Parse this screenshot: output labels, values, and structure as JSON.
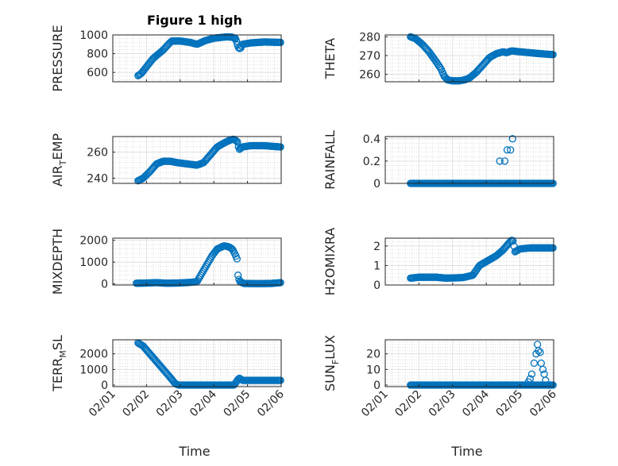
{
  "figure": {
    "title": "Figure 1 high",
    "marker_color": "#0072BD"
  },
  "chart_data": [
    {
      "type": "scatter",
      "id": "pressure",
      "ylabel": "PRESSURE",
      "ylim": [
        500,
        1000
      ],
      "yticks": [
        600,
        800,
        1000
      ],
      "xlim": [
        0,
        5
      ],
      "xticks": [
        0,
        1,
        2,
        3,
        4,
        5
      ],
      "xticklabels": [
        "02/01",
        "02/02",
        "02/03",
        "02/04",
        "02/05",
        "02/06"
      ],
      "curve": [
        [
          0.75,
          565
        ],
        [
          0.85,
          590
        ],
        [
          1.0,
          660
        ],
        [
          1.2,
          750
        ],
        [
          1.5,
          840
        ],
        [
          1.65,
          900
        ],
        [
          1.75,
          935
        ],
        [
          2.0,
          935
        ],
        [
          2.3,
          920
        ],
        [
          2.5,
          900
        ],
        [
          2.75,
          940
        ],
        [
          3.0,
          965
        ],
        [
          3.25,
          975
        ],
        [
          3.4,
          980
        ],
        [
          3.55,
          975
        ],
        [
          3.65,
          960
        ],
        [
          3.72,
          870
        ],
        [
          3.78,
          850
        ],
        [
          3.85,
          900
        ],
        [
          4.1,
          915
        ],
        [
          4.5,
          925
        ],
        [
          4.98,
          920
        ]
      ],
      "xrange": [
        0.75,
        4.98
      ],
      "count": 140
    },
    {
      "type": "scatter",
      "id": "theta",
      "ylabel": "THETA",
      "ylim": [
        256,
        281
      ],
      "yticks": [
        260,
        270,
        280
      ],
      "xlim": [
        0,
        5
      ],
      "xticks": [
        0,
        1,
        2,
        3,
        4,
        5
      ],
      "xticklabels": [
        "02/01",
        "02/02",
        "02/03",
        "02/04",
        "02/05",
        "02/06"
      ],
      "curve": [
        [
          0.75,
          280
        ],
        [
          0.9,
          279
        ],
        [
          1.1,
          276
        ],
        [
          1.3,
          272
        ],
        [
          1.5,
          267
        ],
        [
          1.65,
          263
        ],
        [
          1.75,
          259
        ],
        [
          1.85,
          257
        ],
        [
          2.0,
          256.5
        ],
        [
          2.2,
          256.5
        ],
        [
          2.35,
          257
        ],
        [
          2.5,
          258
        ],
        [
          2.7,
          261
        ],
        [
          2.9,
          265
        ],
        [
          3.1,
          269
        ],
        [
          3.3,
          271
        ],
        [
          3.5,
          272
        ],
        [
          3.6,
          271.5
        ],
        [
          3.75,
          272.5
        ],
        [
          4.0,
          272
        ],
        [
          4.3,
          271.5
        ],
        [
          4.6,
          271
        ],
        [
          4.98,
          270.5
        ]
      ],
      "xrange": [
        0.75,
        4.98
      ],
      "count": 140
    },
    {
      "type": "scatter",
      "id": "air_temp",
      "ylabel": "AIR_TEMP",
      "ylim": [
        236,
        272
      ],
      "yticks": [
        240,
        260
      ],
      "xlim": [
        0,
        5
      ],
      "xticks": [
        0,
        1,
        2,
        3,
        4,
        5
      ],
      "xticklabels": [
        "02/01",
        "02/02",
        "02/03",
        "02/04",
        "02/05",
        "02/06"
      ],
      "curve": [
        [
          0.75,
          238
        ],
        [
          0.9,
          240
        ],
        [
          1.1,
          245
        ],
        [
          1.3,
          251
        ],
        [
          1.5,
          253
        ],
        [
          1.7,
          253
        ],
        [
          1.9,
          252
        ],
        [
          2.2,
          251
        ],
        [
          2.5,
          250
        ],
        [
          2.7,
          252
        ],
        [
          2.9,
          258
        ],
        [
          3.1,
          264
        ],
        [
          3.3,
          267
        ],
        [
          3.5,
          269.5
        ],
        [
          3.6,
          270
        ],
        [
          3.7,
          268
        ],
        [
          3.75,
          262
        ],
        [
          3.85,
          264
        ],
        [
          4.1,
          265
        ],
        [
          4.5,
          265
        ],
        [
          4.98,
          264
        ]
      ],
      "xrange": [
        0.75,
        4.98
      ],
      "count": 140
    },
    {
      "type": "scatter",
      "id": "rainfall",
      "ylabel": "RAINFALL",
      "ylim": [
        0,
        0.42
      ],
      "yticks": [
        0,
        0.2,
        0.4
      ],
      "xlim": [
        0,
        5
      ],
      "xticks": [
        0,
        1,
        2,
        3,
        4,
        5
      ],
      "xticklabels": [
        "02/01",
        "02/02",
        "02/03",
        "02/04",
        "02/05",
        "02/06"
      ],
      "curve": [
        [
          0.75,
          0
        ],
        [
          4.98,
          0
        ]
      ],
      "xrange": [
        0.75,
        4.98
      ],
      "count": 140,
      "extra_points": [
        [
          3.4,
          0.2
        ],
        [
          3.55,
          0.2
        ],
        [
          3.62,
          0.3
        ],
        [
          3.72,
          0.3
        ],
        [
          3.78,
          0.4
        ]
      ]
    },
    {
      "type": "scatter",
      "id": "mixdepth",
      "ylabel": "MIXDEPTH",
      "ylim": [
        -50,
        2100
      ],
      "yticks": [
        0,
        1000,
        2000
      ],
      "xlim": [
        0,
        5
      ],
      "xticks": [
        0,
        1,
        2,
        3,
        4,
        5
      ],
      "xticklabels": [
        "02/01",
        "02/02",
        "02/03",
        "02/04",
        "02/05",
        "02/06"
      ],
      "curve": [
        [
          0.7,
          30
        ],
        [
          1.0,
          40
        ],
        [
          1.3,
          60
        ],
        [
          1.6,
          30
        ],
        [
          1.9,
          40
        ],
        [
          2.2,
          60
        ],
        [
          2.5,
          100
        ],
        [
          2.65,
          500
        ],
        [
          2.8,
          900
        ],
        [
          2.95,
          1300
        ],
        [
          3.1,
          1600
        ],
        [
          3.3,
          1750
        ],
        [
          3.45,
          1700
        ],
        [
          3.55,
          1600
        ],
        [
          3.65,
          1300
        ],
        [
          3.7,
          1100
        ],
        [
          3.72,
          300
        ],
        [
          3.78,
          100
        ],
        [
          3.9,
          20
        ],
        [
          4.3,
          10
        ],
        [
          4.7,
          20
        ],
        [
          4.98,
          60
        ]
      ],
      "xrange": [
        0.7,
        4.98
      ],
      "count": 140
    },
    {
      "type": "scatter",
      "id": "h2omixra",
      "ylabel": "H2OMIXRA",
      "ylim": [
        0,
        2.4
      ],
      "yticks": [
        0,
        1,
        2
      ],
      "xlim": [
        0,
        5
      ],
      "xticks": [
        0,
        1,
        2,
        3,
        4,
        5
      ],
      "xticklabels": [
        "02/01",
        "02/02",
        "02/03",
        "02/04",
        "02/05",
        "02/06"
      ],
      "curve": [
        [
          0.75,
          0.35
        ],
        [
          1.0,
          0.4
        ],
        [
          1.5,
          0.4
        ],
        [
          1.8,
          0.35
        ],
        [
          2.3,
          0.38
        ],
        [
          2.6,
          0.5
        ],
        [
          2.8,
          1.0
        ],
        [
          3.0,
          1.2
        ],
        [
          3.3,
          1.5
        ],
        [
          3.5,
          1.8
        ],
        [
          3.65,
          2.1
        ],
        [
          3.75,
          2.3
        ],
        [
          3.8,
          2.25
        ],
        [
          3.85,
          1.7
        ],
        [
          4.0,
          1.85
        ],
        [
          4.3,
          1.9
        ],
        [
          4.98,
          1.9
        ]
      ],
      "xrange": [
        0.75,
        4.98
      ],
      "count": 140
    },
    {
      "type": "scatter",
      "id": "terr_msl",
      "ylabel": "TERR_MSL",
      "ylim": [
        -100,
        2900
      ],
      "yticks": [
        0,
        1000,
        2000
      ],
      "xlim": [
        0,
        5
      ],
      "xticks": [
        0,
        1,
        2,
        3,
        4,
        5
      ],
      "xticklabels": [
        "02/01",
        "02/02",
        "02/03",
        "02/04",
        "02/05",
        "02/06"
      ],
      "curve": [
        [
          0.75,
          2700
        ],
        [
          0.9,
          2500
        ],
        [
          1.1,
          2000
        ],
        [
          1.3,
          1500
        ],
        [
          1.5,
          1000
        ],
        [
          1.7,
          500
        ],
        [
          1.85,
          100
        ],
        [
          1.95,
          0
        ],
        [
          3.6,
          0
        ],
        [
          3.7,
          300
        ],
        [
          3.75,
          450
        ],
        [
          3.85,
          300
        ],
        [
          4.98,
          300
        ]
      ],
      "xrange": [
        0.75,
        4.98
      ],
      "count": 140
    },
    {
      "type": "scatter",
      "id": "sun_flux",
      "ylabel": "SUN_FLUX",
      "ylim": [
        -1,
        29
      ],
      "yticks": [
        0,
        10,
        20
      ],
      "xlim": [
        0,
        5
      ],
      "xticks": [
        0,
        1,
        2,
        3,
        4,
        5
      ],
      "xticklabels": [
        "02/01",
        "02/02",
        "02/03",
        "02/04",
        "02/05",
        "02/06"
      ],
      "curve": [
        [
          0.75,
          0
        ],
        [
          4.98,
          0
        ]
      ],
      "xrange": [
        0.75,
        4.98
      ],
      "count": 140,
      "extra_points": [
        [
          4.25,
          2
        ],
        [
          4.3,
          4
        ],
        [
          4.35,
          7
        ],
        [
          4.42,
          14
        ],
        [
          4.48,
          20
        ],
        [
          4.52,
          26
        ],
        [
          4.55,
          22
        ],
        [
          4.6,
          21
        ],
        [
          4.63,
          14
        ],
        [
          4.68,
          10
        ],
        [
          4.72,
          7
        ],
        [
          4.76,
          3
        ]
      ]
    }
  ],
  "xaxis_label": "Time"
}
